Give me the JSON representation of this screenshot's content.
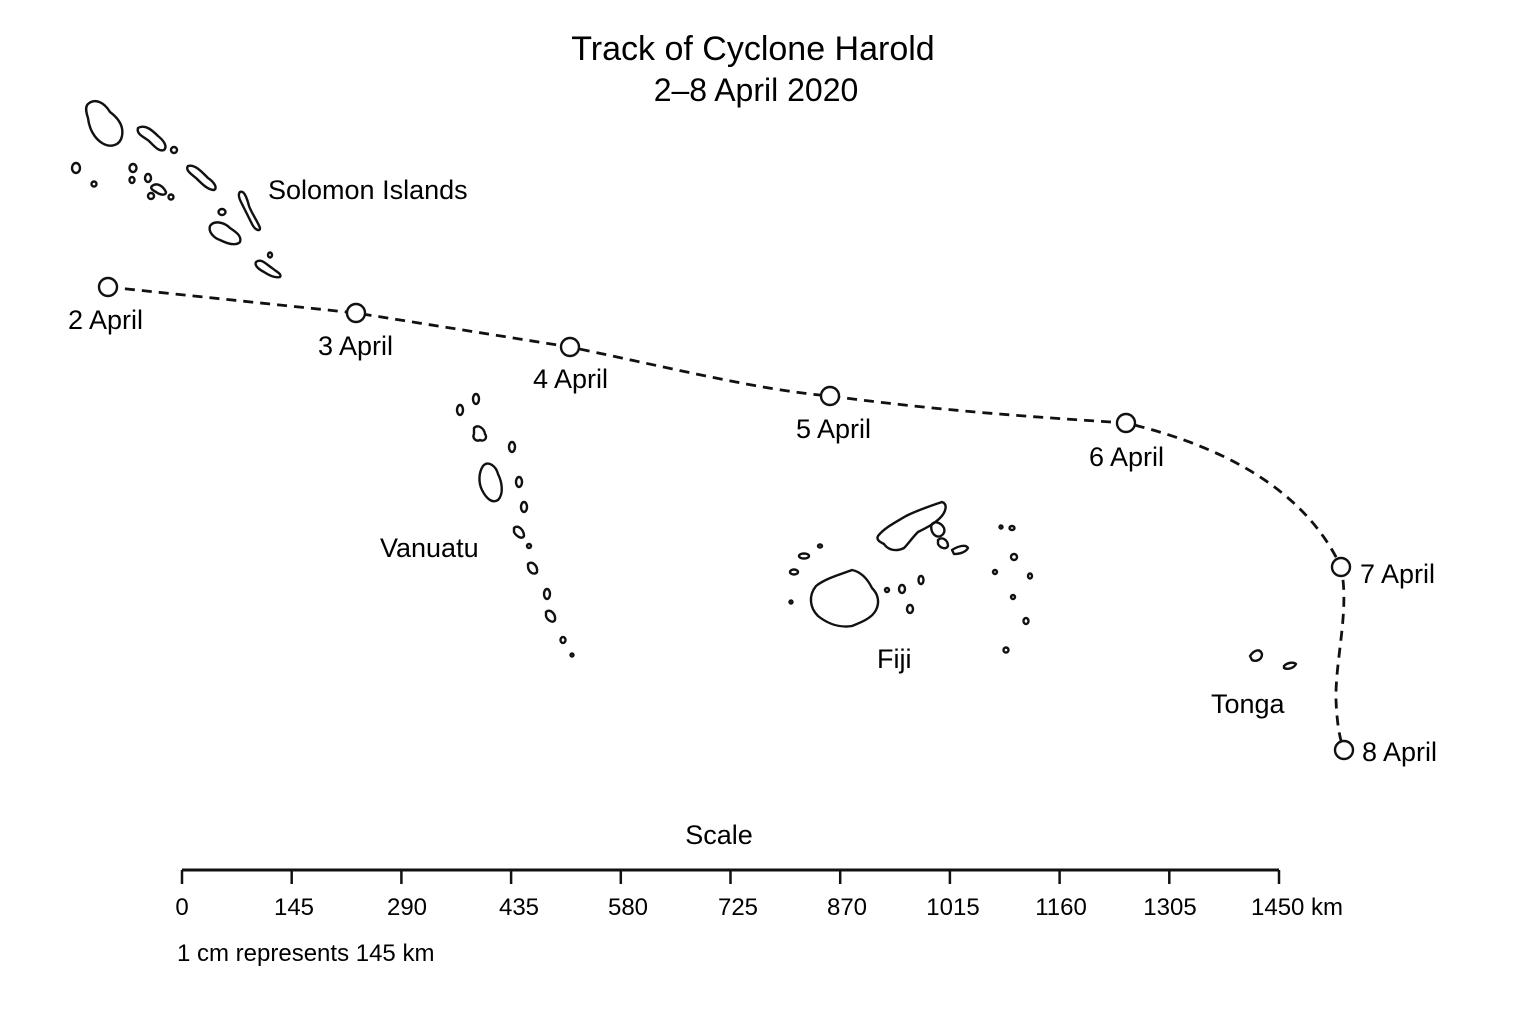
{
  "title": "Track of Cyclone Harold",
  "subtitle": "2–8 April 2020",
  "islands": {
    "solomon": "Solomon Islands",
    "vanuatu": "Vanuatu",
    "fiji": "Fiji",
    "tonga": "Tonga"
  },
  "track_points": [
    {
      "date": "2 April"
    },
    {
      "date": "3 April"
    },
    {
      "date": "4 April"
    },
    {
      "date": "5 April"
    },
    {
      "date": "6 April"
    },
    {
      "date": "7 April"
    },
    {
      "date": "8 April"
    }
  ],
  "scale": {
    "heading": "Scale",
    "ticks": [
      "0",
      "145",
      "290",
      "435",
      "580",
      "725",
      "870",
      "1015",
      "1160",
      "1305",
      "1450 km"
    ],
    "note": "1 cm represents 145 km"
  }
}
